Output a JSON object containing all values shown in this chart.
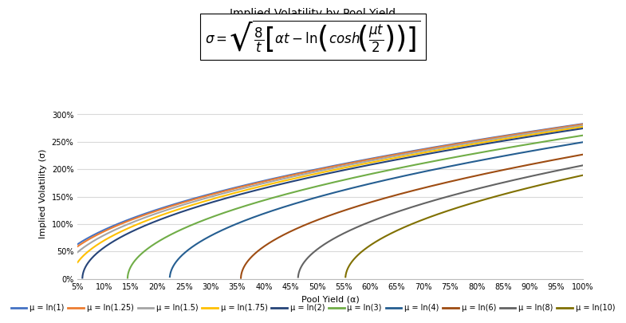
{
  "title": "Implied Volatility by Pool Yield",
  "xlabel": "Pool Yield (α)",
  "ylabel": "Implied Volatility (σ)",
  "alpha_min": 0.05,
  "alpha_max": 1.0,
  "t": 1,
  "series": [
    {
      "label": "μ = ln(1)",
      "mu": 0.0,
      "color": "#4472C4"
    },
    {
      "label": "μ = ln(1.25)",
      "mu": 0.22314355131,
      "color": "#ED7D31"
    },
    {
      "label": "μ = ln(1.5)",
      "mu": 0.40546510810816,
      "color": "#A5A5A5"
    },
    {
      "label": "μ = ln(1.75)",
      "mu": 0.55961578774553,
      "color": "#FFC000"
    },
    {
      "label": "μ = ln(2)",
      "mu": 0.69314718055995,
      "color": "#264478"
    },
    {
      "label": "μ = ln(3)",
      "mu": 1.09861228866811,
      "color": "#70AD47"
    },
    {
      "label": "μ = ln(4)",
      "mu": 1.38629436111989,
      "color": "#255E91"
    },
    {
      "label": "μ = ln(6)",
      "mu": 1.79175946922805,
      "color": "#9E4C12"
    },
    {
      "label": "μ = ln(8)",
      "mu": 2.07944154167984,
      "color": "#636363"
    },
    {
      "label": "μ = ln(10)",
      "mu": 2.30258509299405,
      "color": "#807000"
    }
  ],
  "ylim": [
    0.0,
    3.1
  ],
  "yticks": [
    0.0,
    0.5,
    1.0,
    1.5,
    2.0,
    2.5,
    3.0
  ],
  "xticks": [
    0.05,
    0.1,
    0.15,
    0.2,
    0.25,
    0.3,
    0.35,
    0.4,
    0.45,
    0.5,
    0.55,
    0.6,
    0.65,
    0.7,
    0.75,
    0.8,
    0.85,
    0.9,
    0.95,
    1.0
  ],
  "background_color": "#FFFFFF",
  "grid_color": "#D9D9D9",
  "linewidth": 1.5,
  "title_fontsize": 10,
  "axis_label_fontsize": 8,
  "tick_fontsize": 7,
  "legend_fontsize": 7
}
